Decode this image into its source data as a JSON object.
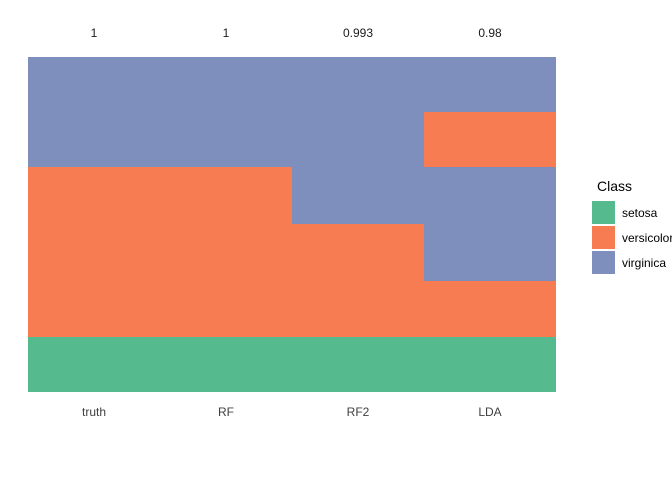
{
  "chart_data": {
    "type": "heatmap",
    "title": "",
    "x_categories": [
      "truth",
      "RF",
      "RF2",
      "LDA"
    ],
    "top_scores": [
      "1",
      "1",
      "0.993",
      "0.98"
    ],
    "classes": [
      {
        "name": "setosa",
        "color": "#55ba8d"
      },
      {
        "name": "versicolor",
        "color": "#f87c52"
      },
      {
        "name": "virginica",
        "color": "#7e8fbe"
      }
    ],
    "columns": [
      {
        "name": "truth",
        "score": "1",
        "segments": [
          {
            "class": "virginica",
            "fraction": 0.3284
          },
          {
            "class": "versicolor",
            "fraction": 0.5074
          },
          {
            "class": "setosa",
            "fraction": 0.1642
          }
        ]
      },
      {
        "name": "RF",
        "score": "1",
        "segments": [
          {
            "class": "virginica",
            "fraction": 0.3284
          },
          {
            "class": "versicolor",
            "fraction": 0.5074
          },
          {
            "class": "setosa",
            "fraction": 0.1642
          }
        ]
      },
      {
        "name": "RF2",
        "score": "0.993",
        "segments": [
          {
            "class": "virginica",
            "fraction": 0.4985
          },
          {
            "class": "versicolor",
            "fraction": 0.3373
          },
          {
            "class": "setosa",
            "fraction": 0.1642
          }
        ]
      },
      {
        "name": "LDA",
        "score": "0.98",
        "segments": [
          {
            "class": "virginica",
            "fraction": 0.1642
          },
          {
            "class": "versicolor",
            "fraction": 0.1642
          },
          {
            "class": "virginica",
            "fraction": 0.3403
          },
          {
            "class": "versicolor",
            "fraction": 0.1671
          },
          {
            "class": "setosa",
            "fraction": 0.1642
          }
        ]
      }
    ],
    "legend": {
      "title": "Class",
      "position": "right",
      "entries": [
        "setosa",
        "versicolor",
        "virginica"
      ]
    },
    "layout": {
      "gridlines": false,
      "panel_border": false,
      "background": "#ffffff"
    }
  }
}
